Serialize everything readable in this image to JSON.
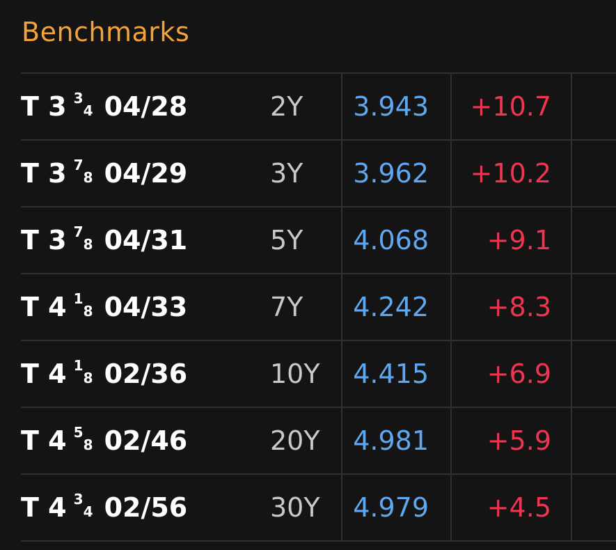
{
  "panel": {
    "title": "Benchmarks"
  },
  "rows": [
    {
      "coupon_whole": "3",
      "coupon_num": "3",
      "coupon_den": "4",
      "maturity": "04/28",
      "tenor": "2Y",
      "yield": "3.943",
      "change": "+10.7"
    },
    {
      "coupon_whole": "3",
      "coupon_num": "7",
      "coupon_den": "8",
      "maturity": "04/29",
      "tenor": "3Y",
      "yield": "3.962",
      "change": "+10.2"
    },
    {
      "coupon_whole": "3",
      "coupon_num": "7",
      "coupon_den": "8",
      "maturity": "04/31",
      "tenor": "5Y",
      "yield": "4.068",
      "change": "+9.1"
    },
    {
      "coupon_whole": "4",
      "coupon_num": "1",
      "coupon_den": "8",
      "maturity": "04/33",
      "tenor": "7Y",
      "yield": "4.242",
      "change": "+8.3"
    },
    {
      "coupon_whole": "4",
      "coupon_num": "1",
      "coupon_den": "8",
      "maturity": "02/36",
      "tenor": "10Y",
      "yield": "4.415",
      "change": "+6.9"
    },
    {
      "coupon_whole": "4",
      "coupon_num": "5",
      "coupon_den": "8",
      "maturity": "02/46",
      "tenor": "20Y",
      "yield": "4.981",
      "change": "+5.9"
    },
    {
      "coupon_whole": "4",
      "coupon_num": "3",
      "coupon_den": "4",
      "maturity": "02/56",
      "tenor": "30Y",
      "yield": "4.979",
      "change": "+4.5"
    }
  ],
  "ticker_prefix": "T",
  "colors": {
    "background": "#141414",
    "title": "#f2a33a",
    "name": "#ffffff",
    "tenor": "#c9c9c9",
    "yield": "#5fa8f0",
    "change_up": "#f03550",
    "grid": "#303030"
  }
}
